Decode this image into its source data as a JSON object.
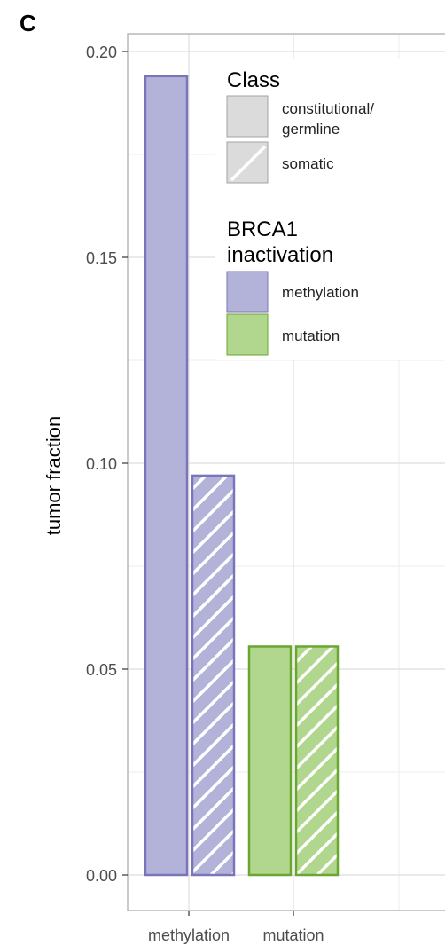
{
  "panel_label": "C",
  "chart_data": {
    "type": "bar",
    "ylabel": "tumor fraction",
    "ylim": [
      -0.01,
      0.205
    ],
    "yticks": [
      "0.00",
      "0.05",
      "0.10",
      "0.15",
      "0.20"
    ],
    "ytick_values": [
      0.0,
      0.05,
      0.1,
      0.15,
      0.2
    ],
    "categories": [
      "methylation",
      "mutation"
    ],
    "grid": true,
    "legend_position": "top-right",
    "bars": [
      {
        "category": "methylation",
        "class": "constitutional/germline",
        "inactivation": "methylation",
        "value": 0.194
      },
      {
        "category": "methylation",
        "class": "somatic",
        "inactivation": "methylation",
        "value": 0.097
      },
      {
        "category": "mutation",
        "class": "constitutional/germline",
        "inactivation": "mutation",
        "value": 0.0555
      },
      {
        "category": "mutation",
        "class": "somatic",
        "inactivation": "mutation",
        "value": 0.0555
      }
    ],
    "legend": {
      "class_title": "Class",
      "class_items": [
        {
          "line1": "constitutional/",
          "line2": "germline",
          "pattern": "solid"
        },
        {
          "line1": "somatic",
          "line2": "",
          "pattern": "hatched"
        }
      ],
      "fill_title_line1": "BRCA1",
      "fill_title_line2": "inactivation",
      "fill_items": [
        {
          "label": "methylation",
          "color": "#b3b3da",
          "border": "#7a75b8"
        },
        {
          "label": "mutation",
          "color": "#b1d68e",
          "border": "#6aa630"
        }
      ]
    },
    "colors": {
      "methylation_fill": "#b3b3da",
      "methylation_border": "#7a75b8",
      "mutation_fill": "#b1d68e",
      "mutation_border": "#6aa630",
      "grid_major": "#dedede",
      "grid_minor": "#eeeeee",
      "panel_border": "#b9b9b9"
    }
  }
}
